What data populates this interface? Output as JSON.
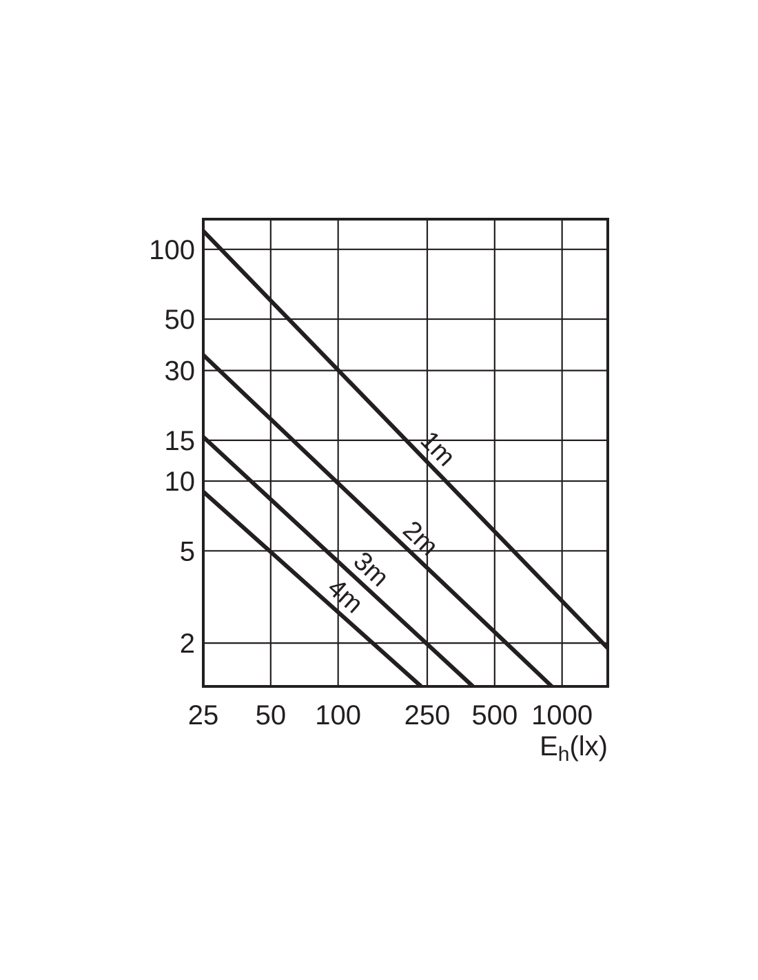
{
  "chart_data": {
    "type": "line",
    "x_scale": "log",
    "y_scale": "log",
    "grid": true,
    "xlim": [
      25,
      1600
    ],
    "ylim": [
      1.3,
      135
    ],
    "x_ticks": [
      25,
      50,
      100,
      250,
      500,
      1000
    ],
    "x_tick_labels": [
      "25",
      "50",
      "100",
      "250",
      "500",
      "1000"
    ],
    "y_ticks": [
      2,
      5,
      10,
      15,
      30,
      50,
      100
    ],
    "y_tick_labels": [
      "2",
      "5",
      "10",
      "15",
      "30",
      "50",
      "100"
    ],
    "xlabel": {
      "main": "E",
      "sub": "h",
      "unit": "(lx)"
    },
    "series": [
      {
        "name": "1m",
        "x": [
          25,
          1600
        ],
        "y": [
          120,
          1.9
        ]
      },
      {
        "name": "2m",
        "x": [
          25,
          900
        ],
        "y": [
          35,
          1.3
        ]
      },
      {
        "name": "3m",
        "x": [
          25,
          400
        ],
        "y": [
          15.5,
          1.3
        ]
      },
      {
        "name": "4m",
        "x": [
          25,
          235
        ],
        "y": [
          9,
          1.3
        ]
      }
    ],
    "colors": {
      "line": "#231f20",
      "grid": "#231f20"
    }
  }
}
